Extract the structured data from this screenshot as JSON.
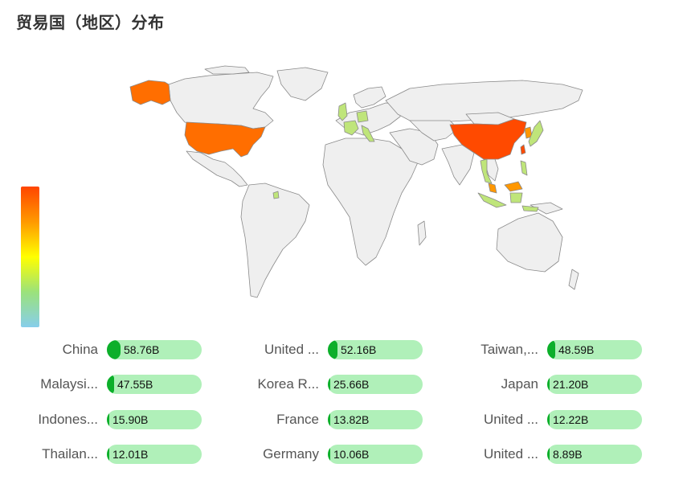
{
  "title": "贸易国（地区）分布",
  "legend": {
    "colors": [
      "#ff4500",
      "#ff9900",
      "#ffff00",
      "#9be27b",
      "#87ceeb"
    ]
  },
  "map_colors": {
    "highest": "#ff4a00",
    "high": "#ff6e00",
    "mid": "#ff9700",
    "low": "#bfe57a",
    "none": "#efefef"
  },
  "chart_data": {
    "type": "bar",
    "title": "贸易国（地区）分布",
    "categories": [
      "China",
      "United ...",
      "Taiwan,...",
      "Malaysi...",
      "Korea R...",
      "Japan",
      "Indones...",
      "France",
      "United ...",
      "Thailan...",
      "Germany",
      "United ..."
    ],
    "series": [
      {
        "values": [
          58.76,
          52.16,
          48.59,
          47.55,
          25.66,
          21.2,
          15.9,
          13.82,
          12.22,
          12.01,
          10.06,
          8.89
        ]
      }
    ],
    "value_labels": [
      "58.76B",
      "52.16B",
      "48.59B",
      "47.55B",
      "25.66B",
      "21.20B",
      "15.90B",
      "13.82B",
      "12.22B",
      "12.01B",
      "10.06B",
      "8.89B"
    ],
    "unit": "B"
  }
}
